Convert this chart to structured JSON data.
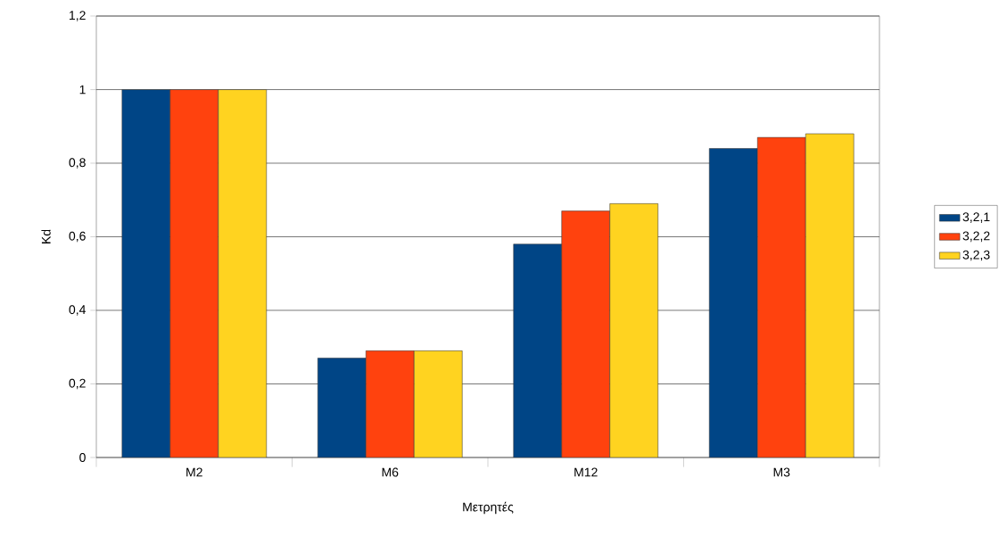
{
  "chart_data": {
    "type": "bar",
    "xlabel": "Μετρητές",
    "ylabel": "Kd",
    "categories": [
      "M2",
      "M6",
      "M12",
      "M3"
    ],
    "series": [
      {
        "name": "3,2,1",
        "color": "#004586",
        "values": [
          1,
          0.27,
          0.58,
          0.84
        ]
      },
      {
        "name": "3,2,2",
        "color": "#ff420e",
        "values": [
          1,
          0.29,
          0.67,
          0.87
        ]
      },
      {
        "name": "3,2,3",
        "color": "#ffd320",
        "values": [
          1,
          0.29,
          0.69,
          0.88
        ]
      }
    ],
    "ylim": [
      0,
      1.2
    ],
    "yticks": [
      0,
      {
        "value": 0.2,
        "label": "0,2"
      },
      {
        "value": 0.4,
        "label": "0,4"
      },
      {
        "value": 0.6,
        "label": "0,6"
      },
      {
        "value": 0.8,
        "label": "0,8"
      },
      1,
      {
        "value": 1.2,
        "label": "1,2"
      }
    ],
    "grid": "y",
    "legend": "right"
  }
}
